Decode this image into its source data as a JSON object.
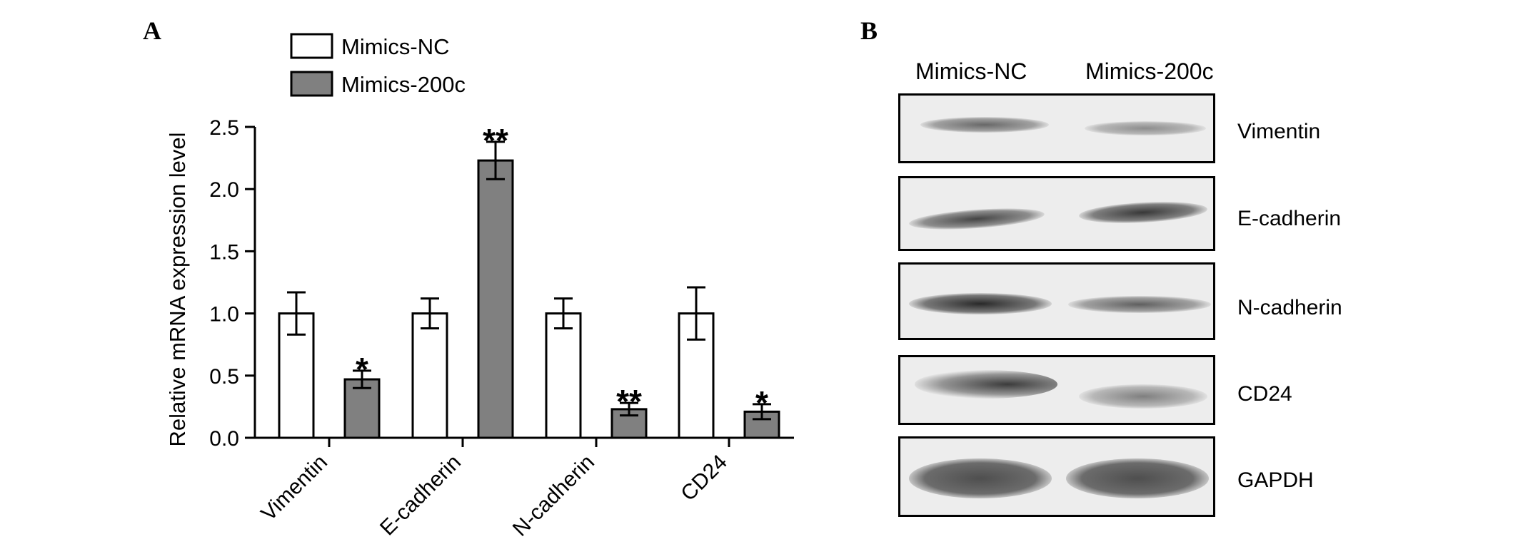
{
  "panel_a": {
    "letter": "A"
  },
  "panel_b": {
    "letter": "B",
    "lanes": [
      "Mimics-NC",
      "Mimics-200c"
    ],
    "bands": [
      "Vimentin",
      "E-cadherin",
      "N-cadherin",
      "CD24",
      "GAPDH"
    ]
  },
  "colors": {
    "nc": "#ffffff",
    "mimic": "#808080",
    "axis": "#000000"
  },
  "chart_data": {
    "type": "bar",
    "categories": [
      "Vimentin",
      "E-cadherin",
      "N-cadherin",
      "CD24"
    ],
    "series": [
      {
        "name": "Mimics-NC",
        "values": [
          1.0,
          1.0,
          1.0,
          1.0
        ],
        "errors": [
          0.17,
          0.12,
          0.12,
          0.21
        ],
        "significance": [
          "",
          "",
          "",
          ""
        ]
      },
      {
        "name": "Mimics-200c",
        "values": [
          0.47,
          2.23,
          0.23,
          0.21
        ],
        "errors": [
          0.07,
          0.15,
          0.05,
          0.06
        ],
        "significance": [
          "*",
          "**",
          "**",
          "*"
        ]
      }
    ],
    "ylabel": "Relative mRNA expression level",
    "xlabel": "",
    "ylim": [
      0,
      2.5
    ],
    "yticks": [
      "0.0",
      "0.5",
      "1.0",
      "1.5",
      "2.0",
      "2.5"
    ],
    "legend_position": "top-left",
    "grid": false
  }
}
